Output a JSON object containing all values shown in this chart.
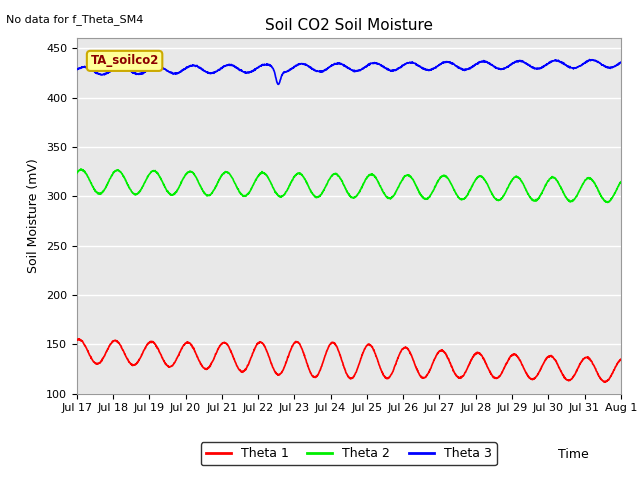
{
  "title": "Soil CO2 Soil Moisture",
  "no_data_text": "No data for f_Theta_SM4",
  "label_text": "TA_soilco2",
  "ylabel": "Soil Moisture (mV)",
  "xlabel": "Time",
  "ylim": [
    100,
    460
  ],
  "yticks": [
    100,
    150,
    200,
    250,
    300,
    350,
    400,
    450
  ],
  "x_labels": [
    "Jul 17",
    "Jul 18",
    "Jul 19",
    "Jul 20",
    "Jul 21",
    "Jul 22",
    "Jul 23",
    "Jul 24",
    "Jul 25",
    "Jul 26",
    "Jul 27",
    "Jul 28",
    "Jul 29",
    "Jul 30",
    "Jul 31",
    "Aug 1"
  ],
  "bg_color": "#e8e8e8",
  "grid_color": "#ffffff",
  "theta1_color": "#ff0000",
  "theta2_color": "#00ee00",
  "theta3_color": "#0000ff",
  "legend_labels": [
    "Theta 1",
    "Theta 2",
    "Theta 3"
  ],
  "title_fontsize": 11,
  "tick_fontsize": 8,
  "label_fontsize": 9
}
